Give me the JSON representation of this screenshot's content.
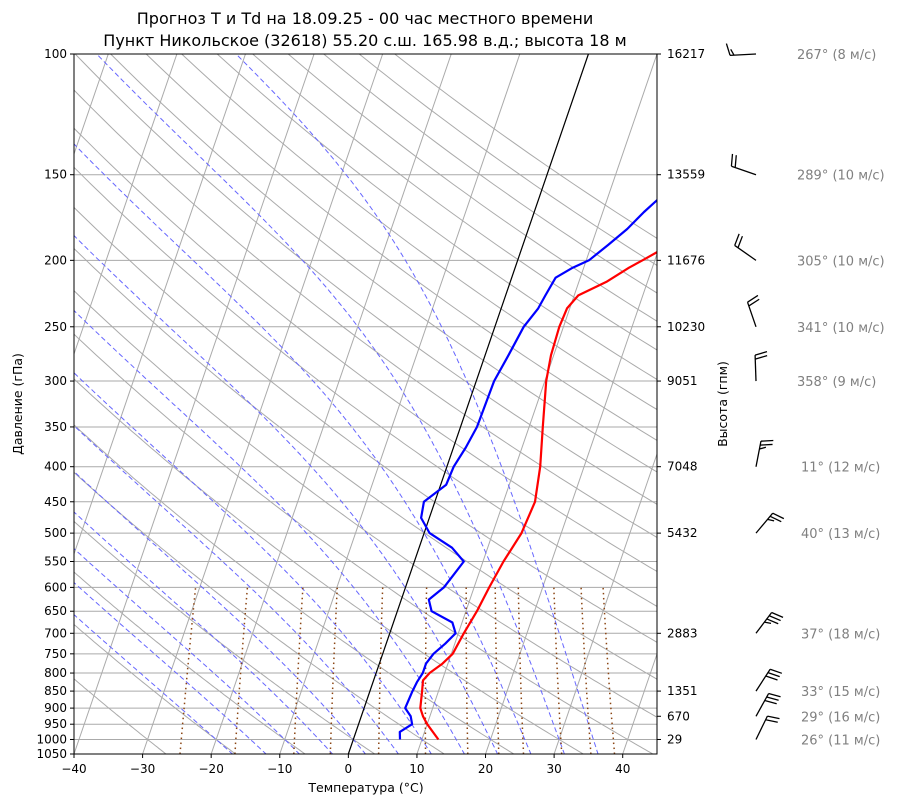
{
  "chart_data": {
    "type": "line",
    "title": "Прогноз T и Td на 18.09.25 - 00 час местного времени",
    "subtitle": "Пункт Никольское (32618) 55.20 с.ш. 165.98 в.д.; высота 18 м",
    "xlabel": "Температура (°C)",
    "ylabel": "Давление (гПа)",
    "y2label": "Высота (гпм)",
    "y_scale": "log",
    "xlim": [
      -40,
      45
    ],
    "ylim": [
      1050,
      100
    ],
    "x_ticks": [
      -40,
      -30,
      -20,
      -10,
      0,
      10,
      20,
      30,
      40
    ],
    "y_ticks": [
      1050,
      1000,
      950,
      900,
      850,
      800,
      750,
      700,
      650,
      600,
      550,
      500,
      450,
      400,
      350,
      300,
      250,
      200,
      150,
      100
    ],
    "height_ticks": [
      {
        "p": 1000,
        "label": "29"
      },
      {
        "p": 925,
        "label": "670"
      },
      {
        "p": 850,
        "label": "1351"
      },
      {
        "p": 700,
        "label": "2883"
      },
      {
        "p": 500,
        "label": "5432"
      },
      {
        "p": 400,
        "label": "7048"
      },
      {
        "p": 300,
        "label": "9051"
      },
      {
        "p": 250,
        "label": "10230"
      },
      {
        "p": 200,
        "label": "11676"
      },
      {
        "p": 150,
        "label": "13559"
      },
      {
        "p": 100,
        "label": "16217"
      }
    ],
    "grid": true,
    "colors": {
      "temperature": "#ff0000",
      "dewpoint": "#0000ff",
      "dry_adiabat": "#aaaaaa",
      "moist_adiabat": "#6666ff",
      "mixing_ratio": "#8b4513",
      "isotherm_zero": "#000000"
    },
    "series": [
      {
        "key": "temperature",
        "points": [
          {
            "p": 1000,
            "t": 12.4
          },
          {
            "p": 950,
            "t": 10.0
          },
          {
            "p": 925,
            "t": 9.0
          },
          {
            "p": 900,
            "t": 8.2
          },
          {
            "p": 850,
            "t": 7.6
          },
          {
            "p": 820,
            "t": 7.2
          },
          {
            "p": 800,
            "t": 7.8
          },
          {
            "p": 775,
            "t": 9.2
          },
          {
            "p": 750,
            "t": 10.2
          },
          {
            "p": 700,
            "t": 10.8
          },
          {
            "p": 650,
            "t": 11.6
          },
          {
            "p": 600,
            "t": 12.2
          },
          {
            "p": 550,
            "t": 13.0
          },
          {
            "p": 500,
            "t": 14.2
          },
          {
            "p": 450,
            "t": 14.6
          },
          {
            "p": 400,
            "t": 13.6
          },
          {
            "p": 350,
            "t": 12.0
          },
          {
            "p": 300,
            "t": 10.2
          },
          {
            "p": 275,
            "t": 9.6
          },
          {
            "p": 250,
            "t": 9.4
          },
          {
            "p": 235,
            "t": 9.6
          },
          {
            "p": 225,
            "t": 10.6
          },
          {
            "p": 215,
            "t": 14.0
          },
          {
            "p": 205,
            "t": 16.6
          },
          {
            "p": 200,
            "t": 18.2
          },
          {
            "p": 190,
            "t": 21.4
          },
          {
            "p": 180,
            "t": 24.2
          },
          {
            "p": 170,
            "t": 26.8
          },
          {
            "p": 160,
            "t": 29.6
          },
          {
            "p": 150,
            "t": 33.2
          },
          {
            "p": 140,
            "t": 36.8
          },
          {
            "p": 130,
            "t": 39.6
          },
          {
            "p": 120,
            "t": 42.6
          },
          {
            "p": 110,
            "t": 45.0
          }
        ]
      },
      {
        "key": "dewpoint",
        "points": [
          {
            "p": 1000,
            "t": 6.8
          },
          {
            "p": 975,
            "t": 6.4
          },
          {
            "p": 950,
            "t": 7.8
          },
          {
            "p": 925,
            "t": 7.2
          },
          {
            "p": 900,
            "t": 6.0
          },
          {
            "p": 850,
            "t": 6.2
          },
          {
            "p": 825,
            "t": 6.4
          },
          {
            "p": 800,
            "t": 6.8
          },
          {
            "p": 775,
            "t": 6.8
          },
          {
            "p": 750,
            "t": 7.4
          },
          {
            "p": 725,
            "t": 8.6
          },
          {
            "p": 700,
            "t": 9.6
          },
          {
            "p": 675,
            "t": 8.6
          },
          {
            "p": 650,
            "t": 5.0
          },
          {
            "p": 625,
            "t": 4.0
          },
          {
            "p": 600,
            "t": 5.6
          },
          {
            "p": 575,
            "t": 6.4
          },
          {
            "p": 550,
            "t": 7.2
          },
          {
            "p": 525,
            "t": 4.8
          },
          {
            "p": 500,
            "t": 0.8
          },
          {
            "p": 475,
            "t": -1.2
          },
          {
            "p": 450,
            "t": -1.6
          },
          {
            "p": 425,
            "t": 0.8
          },
          {
            "p": 400,
            "t": 1.0
          },
          {
            "p": 375,
            "t": 1.8
          },
          {
            "p": 350,
            "t": 2.4
          },
          {
            "p": 300,
            "t": 2.6
          },
          {
            "p": 275,
            "t": 3.4
          },
          {
            "p": 250,
            "t": 4.2
          },
          {
            "p": 235,
            "t": 5.4
          },
          {
            "p": 225,
            "t": 5.8
          },
          {
            "p": 212,
            "t": 6.4
          },
          {
            "p": 205,
            "t": 8.4
          },
          {
            "p": 200,
            "t": 10.4
          },
          {
            "p": 190,
            "t": 12.4
          },
          {
            "p": 180,
            "t": 14.4
          },
          {
            "p": 170,
            "t": 16.0
          },
          {
            "p": 160,
            "t": 18.0
          },
          {
            "p": 150,
            "t": 20.2
          },
          {
            "p": 140,
            "t": 22.6
          },
          {
            "p": 130,
            "t": 24.4
          },
          {
            "p": 120,
            "t": 26.4
          },
          {
            "p": 110,
            "t": 28.8
          },
          {
            "p": 100,
            "t": 31.2
          }
        ]
      }
    ],
    "wind": [
      {
        "p": 100,
        "dir": 267,
        "speed": 8,
        "label": "267° (8 м/с)"
      },
      {
        "p": 150,
        "dir": 289,
        "speed": 10,
        "label": "289° (10 м/с)"
      },
      {
        "p": 200,
        "dir": 305,
        "speed": 10,
        "label": "305° (10 м/с)"
      },
      {
        "p": 250,
        "dir": 341,
        "speed": 10,
        "label": "341° (10 м/с)"
      },
      {
        "p": 300,
        "dir": 358,
        "speed": 9,
        "label": "358° (9 м/с)"
      },
      {
        "p": 400,
        "dir": 11,
        "speed": 12,
        "label": "11° (12 м/с)"
      },
      {
        "p": 500,
        "dir": 40,
        "speed": 13,
        "label": "40° (13 м/с)"
      },
      {
        "p": 700,
        "dir": 37,
        "speed": 18,
        "label": "37° (18 м/с)"
      },
      {
        "p": 850,
        "dir": 33,
        "speed": 15,
        "label": "33° (15 м/с)"
      },
      {
        "p": 925,
        "dir": 29,
        "speed": 16,
        "label": "29° (16 м/с)"
      },
      {
        "p": 1000,
        "dir": 26,
        "speed": 11,
        "label": "26° (11 м/с)"
      }
    ]
  }
}
